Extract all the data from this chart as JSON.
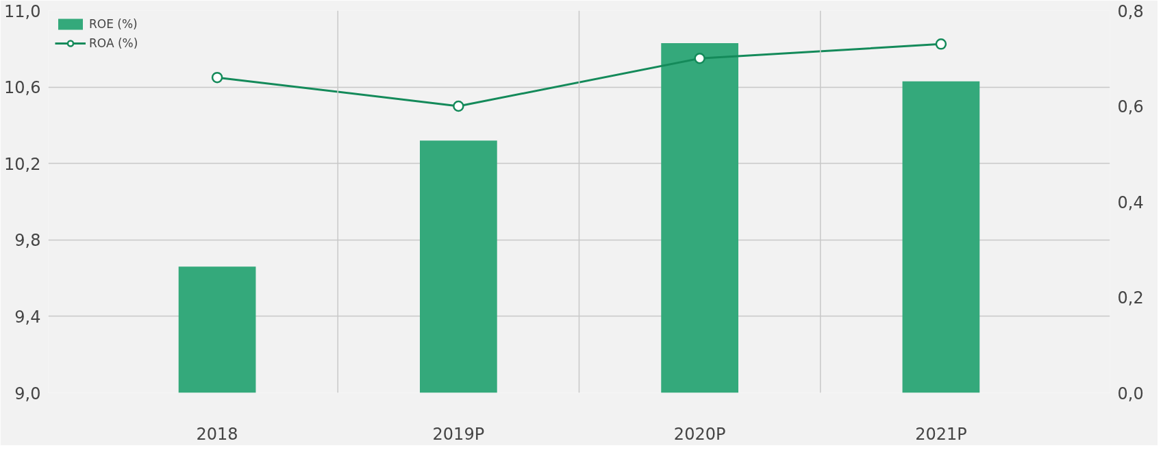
{
  "chart_data": {
    "type": "bar",
    "categories": [
      "2018",
      "2019P",
      "2020P",
      "2021P"
    ],
    "series": [
      {
        "name": "ROE (%)",
        "color": "#34a97b",
        "values": [
          9.66,
          10.32,
          10.83,
          10.63
        ]
      },
      {
        "name": "ROA (%)",
        "type": "line",
        "axis": "y2",
        "color": "#148a5a",
        "marker": "circle",
        "values": [
          0.66,
          0.6,
          0.7,
          0.73
        ]
      }
    ],
    "ylim": [
      9.0,
      11.0
    ],
    "yticks": [
      {
        "value": 9.0,
        "label": "9,0"
      },
      {
        "value": 9.4,
        "label": "9,4"
      },
      {
        "value": 9.8,
        "label": "9,8"
      },
      {
        "value": 10.2,
        "label": "10,2"
      },
      {
        "value": 10.6,
        "label": "10,6"
      },
      {
        "value": 11.0,
        "label": "11,0"
      }
    ],
    "y2lim": [
      0.0,
      0.8
    ],
    "y2ticks": [
      {
        "value": 0.0,
        "label": "0,0"
      },
      {
        "value": 0.2,
        "label": "0,2"
      },
      {
        "value": 0.4,
        "label": "0,4"
      },
      {
        "value": 0.6,
        "label": "0,6"
      },
      {
        "value": 0.8,
        "label": "0,8"
      }
    ],
    "grid": true,
    "legend": "top left"
  }
}
